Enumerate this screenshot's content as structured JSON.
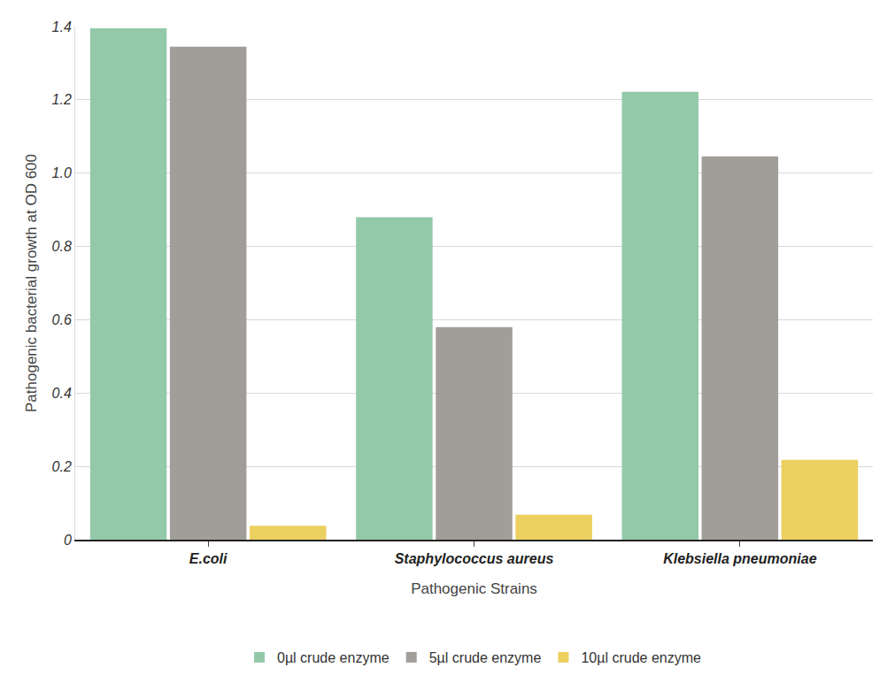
{
  "chart_data": {
    "type": "bar",
    "x_label": "Pathogenic Strains",
    "y_label": "Pathogenic bacterial growth at OD 600",
    "categories": [
      "E.coli",
      "Staphylococcus aureus",
      "Klebsiella pneumoniae"
    ],
    "series": [
      {
        "name": "0µl crude enzyme",
        "color": "#93c9a9",
        "values": [
          1.395,
          0.88,
          1.222
        ]
      },
      {
        "name": "5µl crude enzyme",
        "color": "#a19d99",
        "values": [
          1.345,
          0.58,
          1.046
        ]
      },
      {
        "name": "10µl crude enzyme",
        "color": "#ecd060",
        "values": [
          0.038,
          0.068,
          0.218
        ]
      }
    ],
    "ylim": [
      0,
      1.4
    ],
    "yticks": [
      0,
      0.2,
      0.4,
      0.6,
      0.8,
      {
        "value": 1,
        "label": "1.0"
      },
      1.2,
      1.4
    ],
    "grid": true,
    "legend": "bottom"
  }
}
